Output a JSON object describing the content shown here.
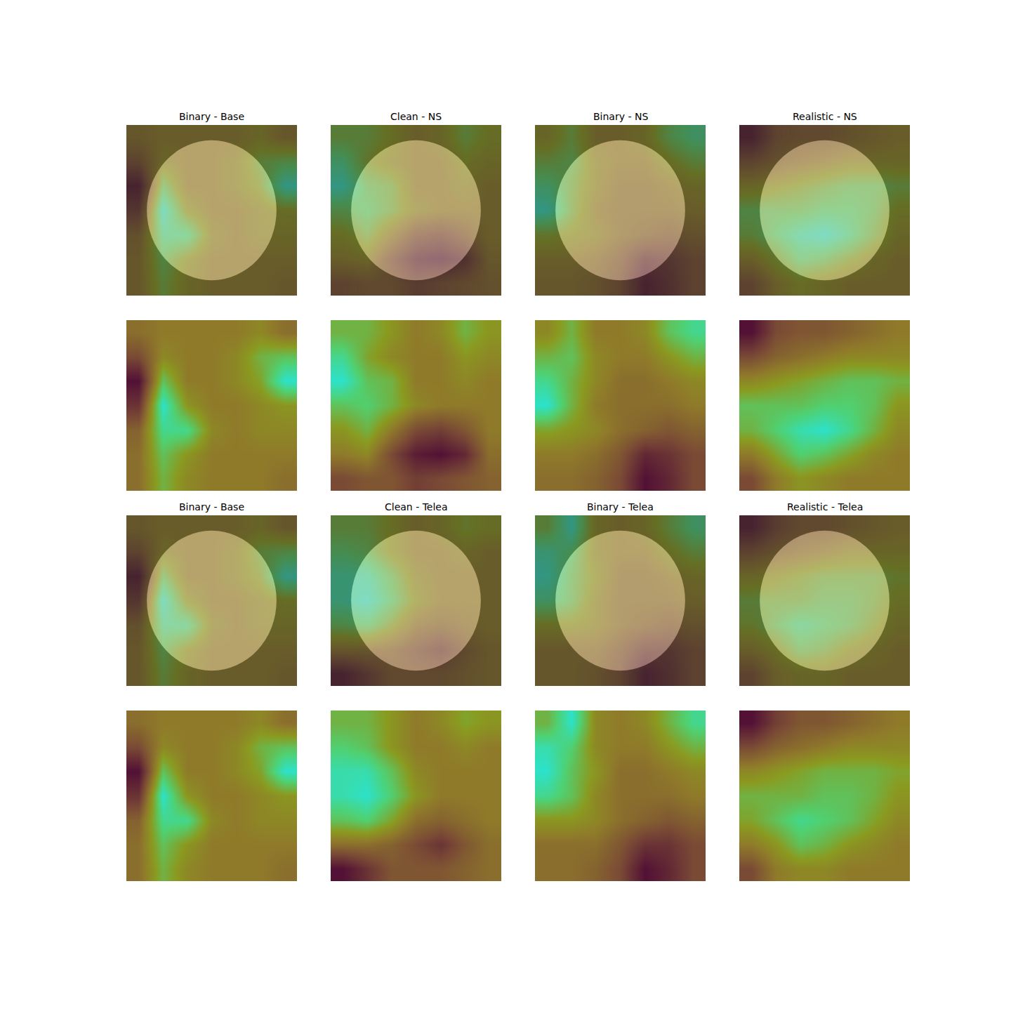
{
  "chart_data": [
    {
      "type": "heatmap",
      "title": "Binary - Base",
      "tick_labels": false,
      "zlim": [
        0,
        1
      ],
      "z": [
        [
          0.45,
          0.5,
          0.5,
          0.5,
          0.5,
          0.55,
          0.45
        ],
        [
          0.3,
          0.55,
          0.5,
          0.5,
          0.55,
          0.7,
          0.75
        ],
        [
          0.05,
          0.75,
          0.5,
          0.5,
          0.55,
          0.65,
          0.95
        ],
        [
          0.2,
          0.95,
          0.6,
          0.5,
          0.5,
          0.55,
          0.6
        ],
        [
          0.4,
          0.85,
          0.85,
          0.55,
          0.5,
          0.55,
          0.55
        ],
        [
          0.45,
          0.75,
          0.6,
          0.5,
          0.5,
          0.5,
          0.5
        ],
        [
          0.45,
          0.7,
          0.55,
          0.5,
          0.5,
          0.5,
          0.45
        ]
      ]
    },
    {
      "type": "heatmap",
      "title": "Clean - NS",
      "tick_labels": false,
      "zlim": [
        0,
        1
      ],
      "z": [
        [
          0.7,
          0.7,
          0.6,
          0.5,
          0.55,
          0.7,
          0.6
        ],
        [
          0.85,
          0.65,
          0.55,
          0.5,
          0.5,
          0.6,
          0.55
        ],
        [
          0.95,
          0.75,
          0.7,
          0.5,
          0.5,
          0.55,
          0.5
        ],
        [
          0.75,
          0.8,
          0.7,
          0.55,
          0.5,
          0.5,
          0.5
        ],
        [
          0.6,
          0.7,
          0.5,
          0.3,
          0.25,
          0.35,
          0.5
        ],
        [
          0.5,
          0.55,
          0.3,
          0.1,
          0.05,
          0.15,
          0.45
        ],
        [
          0.3,
          0.35,
          0.35,
          0.25,
          0.3,
          0.35,
          0.4
        ]
      ]
    },
    {
      "type": "heatmap",
      "title": "Binary - NS",
      "tick_labels": false,
      "zlim": [
        0,
        1
      ],
      "z": [
        [
          0.55,
          0.7,
          0.5,
          0.5,
          0.55,
          0.75,
          0.85
        ],
        [
          0.7,
          0.75,
          0.55,
          0.5,
          0.5,
          0.6,
          0.7
        ],
        [
          0.85,
          0.7,
          0.55,
          0.45,
          0.45,
          0.5,
          0.55
        ],
        [
          0.95,
          0.7,
          0.5,
          0.45,
          0.45,
          0.45,
          0.5
        ],
        [
          0.65,
          0.6,
          0.55,
          0.45,
          0.4,
          0.35,
          0.4
        ],
        [
          0.5,
          0.5,
          0.45,
          0.35,
          0.15,
          0.2,
          0.3
        ],
        [
          0.45,
          0.45,
          0.4,
          0.3,
          0.05,
          0.15,
          0.3
        ]
      ]
    },
    {
      "type": "heatmap",
      "title": "Realistic - NS",
      "tick_labels": false,
      "zlim": [
        0,
        1
      ],
      "z": [
        [
          0.05,
          0.3,
          0.35,
          0.35,
          0.4,
          0.45,
          0.5
        ],
        [
          0.3,
          0.4,
          0.45,
          0.5,
          0.55,
          0.55,
          0.55
        ],
        [
          0.55,
          0.6,
          0.65,
          0.7,
          0.75,
          0.75,
          0.7
        ],
        [
          0.75,
          0.75,
          0.75,
          0.8,
          0.8,
          0.75,
          0.6
        ],
        [
          0.7,
          0.8,
          0.9,
          0.95,
          0.85,
          0.7,
          0.55
        ],
        [
          0.5,
          0.65,
          0.8,
          0.75,
          0.65,
          0.55,
          0.5
        ],
        [
          0.3,
          0.5,
          0.6,
          0.55,
          0.5,
          0.5,
          0.5
        ]
      ]
    },
    {
      "type": "heatmap",
      "title": "Binary - Base",
      "tick_labels": false,
      "zlim": [
        0,
        1
      ],
      "z": [
        [
          0.45,
          0.5,
          0.5,
          0.5,
          0.5,
          0.55,
          0.45
        ],
        [
          0.3,
          0.55,
          0.5,
          0.5,
          0.55,
          0.7,
          0.75
        ],
        [
          0.05,
          0.75,
          0.5,
          0.5,
          0.55,
          0.65,
          0.95
        ],
        [
          0.2,
          0.95,
          0.6,
          0.5,
          0.5,
          0.55,
          0.6
        ],
        [
          0.4,
          0.85,
          0.85,
          0.55,
          0.5,
          0.55,
          0.55
        ],
        [
          0.45,
          0.75,
          0.6,
          0.5,
          0.5,
          0.5,
          0.5
        ],
        [
          0.45,
          0.7,
          0.55,
          0.5,
          0.5,
          0.5,
          0.45
        ]
      ]
    },
    {
      "type": "heatmap",
      "title": "Clean - Telea",
      "tick_labels": false,
      "zlim": [
        0,
        1
      ],
      "z": [
        [
          0.7,
          0.7,
          0.6,
          0.5,
          0.55,
          0.65,
          0.6
        ],
        [
          0.8,
          0.75,
          0.6,
          0.5,
          0.5,
          0.55,
          0.5
        ],
        [
          0.9,
          0.9,
          0.75,
          0.55,
          0.5,
          0.5,
          0.5
        ],
        [
          0.9,
          0.95,
          0.8,
          0.6,
          0.5,
          0.5,
          0.5
        ],
        [
          0.75,
          0.8,
          0.65,
          0.45,
          0.4,
          0.45,
          0.5
        ],
        [
          0.45,
          0.45,
          0.4,
          0.3,
          0.2,
          0.35,
          0.45
        ],
        [
          0.05,
          0.2,
          0.35,
          0.35,
          0.35,
          0.4,
          0.45
        ]
      ]
    },
    {
      "type": "heatmap",
      "title": "Binary - Telea",
      "tick_labels": false,
      "zlim": [
        0,
        1
      ],
      "z": [
        [
          0.7,
          0.95,
          0.55,
          0.5,
          0.55,
          0.7,
          0.85
        ],
        [
          0.9,
          0.8,
          0.55,
          0.5,
          0.5,
          0.6,
          0.7
        ],
        [
          0.95,
          0.75,
          0.6,
          0.45,
          0.45,
          0.5,
          0.55
        ],
        [
          0.85,
          0.75,
          0.55,
          0.45,
          0.45,
          0.45,
          0.5
        ],
        [
          0.6,
          0.6,
          0.55,
          0.45,
          0.4,
          0.35,
          0.4
        ],
        [
          0.45,
          0.45,
          0.45,
          0.35,
          0.2,
          0.2,
          0.3
        ],
        [
          0.45,
          0.45,
          0.4,
          0.3,
          0.05,
          0.15,
          0.3
        ]
      ]
    },
    {
      "type": "heatmap",
      "title": "Realistic - Telea",
      "tick_labels": false,
      "zlim": [
        0,
        1
      ],
      "z": [
        [
          0.05,
          0.25,
          0.35,
          0.35,
          0.4,
          0.45,
          0.5
        ],
        [
          0.3,
          0.4,
          0.45,
          0.5,
          0.55,
          0.55,
          0.55
        ],
        [
          0.55,
          0.6,
          0.65,
          0.7,
          0.7,
          0.7,
          0.65
        ],
        [
          0.7,
          0.7,
          0.7,
          0.75,
          0.75,
          0.7,
          0.6
        ],
        [
          0.65,
          0.75,
          0.85,
          0.8,
          0.75,
          0.65,
          0.55
        ],
        [
          0.5,
          0.6,
          0.75,
          0.7,
          0.6,
          0.55,
          0.5
        ],
        [
          0.3,
          0.5,
          0.55,
          0.55,
          0.5,
          0.5,
          0.5
        ]
      ]
    }
  ]
}
